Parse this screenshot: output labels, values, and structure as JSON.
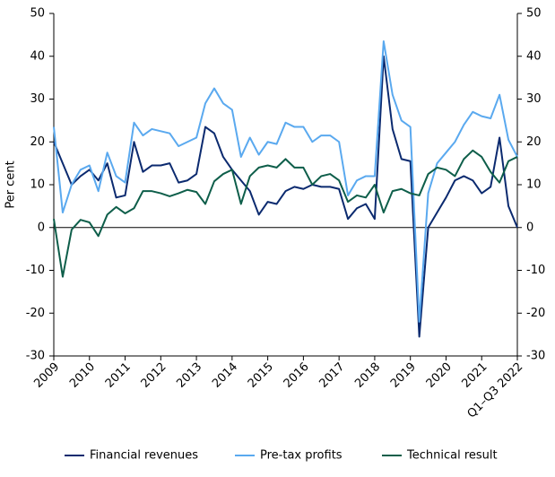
{
  "chart_data": {
    "type": "line",
    "ylabel": "Per cent",
    "categories": [
      "2009",
      null,
      null,
      null,
      "2010",
      null,
      null,
      null,
      "2011",
      null,
      null,
      null,
      "2012",
      null,
      null,
      null,
      "2013",
      null,
      null,
      null,
      "2014",
      null,
      null,
      null,
      "2015",
      null,
      null,
      null,
      "2016",
      null,
      null,
      null,
      "2017",
      null,
      null,
      null,
      "2018",
      null,
      null,
      null,
      "2019",
      null,
      null,
      null,
      "2020",
      null,
      null,
      null,
      "2021",
      null,
      null,
      null,
      "Q1–Q3 2022"
    ],
    "series": [
      {
        "name": "Financial revenues",
        "color": "#0b2a6f",
        "values": [
          20,
          15,
          10,
          12,
          13.5,
          11,
          15,
          7,
          7.5,
          20,
          13,
          14.5,
          14.5,
          15,
          10.5,
          11,
          12.5,
          23.5,
          22,
          16.5,
          13.5,
          11,
          8.5,
          3,
          6,
          5.5,
          8.5,
          9.5,
          9,
          10,
          9.5,
          9.5,
          9,
          2,
          4.5,
          5.5,
          2,
          40,
          23,
          16,
          15.5,
          -25.5,
          0,
          3.5,
          7,
          11,
          12,
          11,
          8,
          9.5,
          21,
          5,
          0
        ]
      },
      {
        "name": "Pre-tax profits",
        "color": "#5aa9ef",
        "values": [
          23.5,
          3.5,
          10,
          13.5,
          14.5,
          8.5,
          17.5,
          12,
          10.5,
          24.5,
          21.5,
          23,
          22.5,
          22,
          19,
          20,
          21,
          29,
          32.5,
          29,
          27.5,
          16.5,
          21,
          17,
          20,
          19.5,
          24.5,
          23.5,
          23.5,
          20,
          21.5,
          21.5,
          20,
          7.5,
          11,
          12,
          12,
          43.5,
          31,
          25,
          23.5,
          -22,
          8,
          15,
          17.5,
          20,
          24,
          27,
          26,
          25.5,
          31,
          20.5,
          16.5
        ]
      },
      {
        "name": "Technical result",
        "color": "#0e5e4a",
        "values": [
          2,
          -11.5,
          -0.5,
          1.8,
          1.2,
          -2,
          3,
          4.8,
          3.3,
          4.5,
          8.5,
          8.5,
          8,
          7.3,
          8,
          8.8,
          8.3,
          5.5,
          10.8,
          12.5,
          13.5,
          5.5,
          12,
          14,
          14.5,
          14,
          16,
          14,
          14,
          10,
          12,
          12.5,
          11,
          6,
          7.5,
          7,
          10,
          3.5,
          8.5,
          9,
          8,
          7.5,
          12.5,
          14,
          13.5,
          12,
          16,
          18,
          16.5,
          13,
          10.5,
          15.5,
          16.5
        ]
      }
    ],
    "ylim": [
      -30,
      50
    ],
    "yticks": [
      -30,
      -20,
      -10,
      0,
      10,
      20,
      30,
      40,
      50
    ],
    "y2lim": [
      -30,
      50
    ],
    "y2ticks": [
      -30,
      -20,
      -10,
      0,
      10,
      20,
      30,
      40,
      50
    ],
    "legend": "bottom"
  }
}
